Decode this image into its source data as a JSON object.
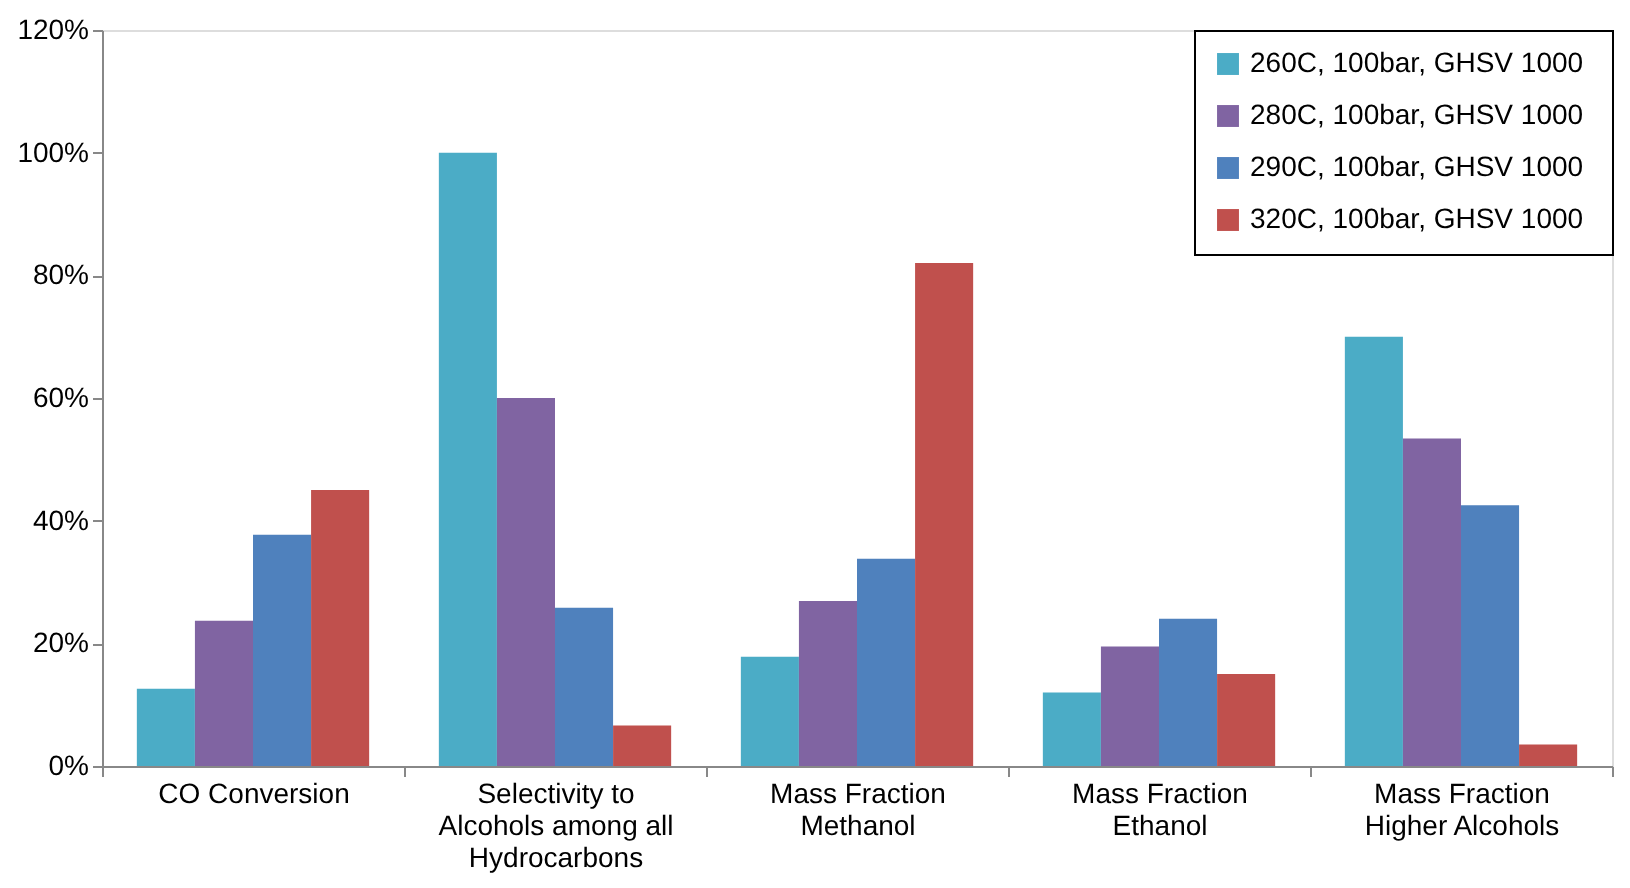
{
  "chart_data": {
    "type": "bar",
    "categories": [
      "CO Conversion",
      "Selectivity to Alcohols among all Hydrocarbons",
      "Mass Fraction Methanol",
      "Mass Fraction Ethanol",
      "Mass Fraction Higher Alcohols"
    ],
    "series": [
      {
        "name": "260C, 100bar, GHSV  1000",
        "color": "#4bacc6",
        "values": [
          12.6,
          100,
          17.8,
          12,
          70
        ]
      },
      {
        "name": "280C, 100bar, GHSV  1000",
        "color": "#8064a2",
        "values": [
          23.7,
          60,
          26.9,
          19.5,
          53.4
        ]
      },
      {
        "name": "290C, 100bar, GHSV  1000",
        "color": "#4f81bd",
        "values": [
          37.7,
          25.8,
          33.8,
          24,
          42.5
        ]
      },
      {
        "name": "320C, 100bar, GHSV  1000",
        "color": "#c0504d",
        "values": [
          45,
          6.6,
          82,
          15,
          3.5
        ]
      }
    ],
    "ylim": [
      0,
      120
    ],
    "yticks": [
      {
        "value": 0,
        "label": "0%"
      },
      {
        "value": 20,
        "label": "20%"
      },
      {
        "value": 40,
        "label": "40%"
      },
      {
        "value": 60,
        "label": "60%"
      },
      {
        "value": 80,
        "label": "80%"
      },
      {
        "value": 100,
        "label": "100%"
      },
      {
        "value": 120,
        "label": "120%"
      }
    ],
    "grid": false,
    "legend": "top right"
  }
}
